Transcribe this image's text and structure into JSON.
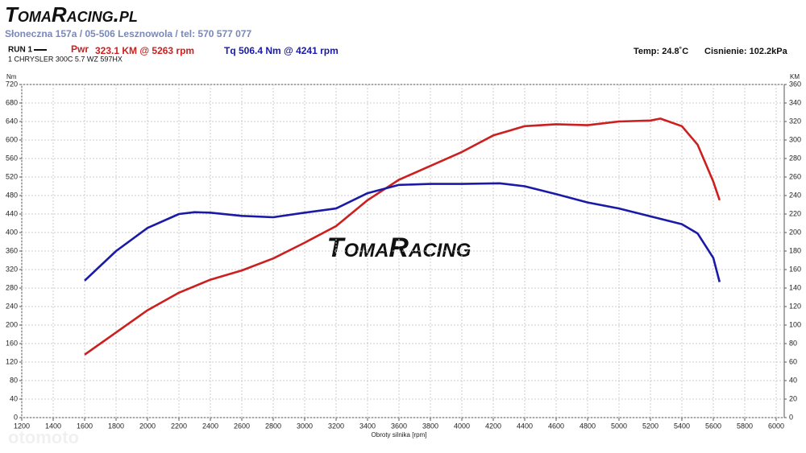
{
  "header": {
    "logo": "TomaRacing.pl",
    "address": "Słoneczna 157a / 05-506 Lesznowola / tel: 570 577 077",
    "run": "RUN 1",
    "vehicle": "1 CHRYSLER 300C 5.7 WZ 597HX",
    "temperature": "Temp: 24.8˚C",
    "pressure": "Cisnienie: 102.2kPa"
  },
  "chart_data": {
    "type": "line",
    "xlabel": "Obroty silnika [rpm]",
    "ylabel": "Nm",
    "y2label": "KM",
    "watermark": "TomaRacing",
    "site_watermark": "otomoto",
    "xlim": [
      1200,
      6000
    ],
    "xticks": [
      1200,
      1400,
      1600,
      1800,
      2000,
      2200,
      2400,
      2600,
      2800,
      3000,
      3200,
      3400,
      3600,
      3800,
      4000,
      4200,
      4400,
      4600,
      4800,
      5000,
      5200,
      5400,
      5600,
      5800,
      6000
    ],
    "ylim": [
      0,
      720
    ],
    "yticks": [
      0,
      40,
      80,
      120,
      160,
      200,
      240,
      280,
      320,
      360,
      400,
      440,
      480,
      520,
      560,
      600,
      640,
      680,
      720
    ],
    "y2lim": [
      0,
      360
    ],
    "y2ticks": [
      0,
      20,
      40,
      60,
      80,
      100,
      120,
      140,
      160,
      180,
      200,
      220,
      240,
      260,
      280,
      300,
      320,
      340,
      360
    ],
    "grid": true,
    "series": [
      {
        "name": "Pwr",
        "peak": "323.1 KM @ 5263 rpm",
        "color": "#cc1f1f",
        "axis": "y2",
        "x": [
          1600,
          1800,
          2000,
          2200,
          2400,
          2600,
          2800,
          3000,
          3200,
          3400,
          3600,
          3800,
          4000,
          4200,
          4400,
          4600,
          4800,
          5000,
          5200,
          5263,
          5400,
          5500,
          5600,
          5640
        ],
        "values": [
          68,
          92,
          116,
          135,
          149,
          159,
          172,
          189,
          207,
          235,
          257,
          272,
          287,
          305,
          315,
          317,
          316,
          320,
          321,
          323.1,
          315,
          295,
          255,
          235
        ]
      },
      {
        "name": "Tq",
        "peak": "506.4 Nm @ 4241 rpm",
        "color": "#1a1aa6",
        "x": [
          1600,
          1800,
          2000,
          2200,
          2300,
          2400,
          2600,
          2800,
          3000,
          3200,
          3400,
          3600,
          3800,
          4000,
          4241,
          4400,
          4600,
          4800,
          5000,
          5200,
          5400,
          5500,
          5600,
          5640
        ],
        "values": [
          296,
          360,
          410,
          440,
          444,
          443,
          436,
          433,
          443,
          452,
          485,
          503,
          505,
          505,
          506.4,
          500,
          483,
          465,
          452,
          435,
          418,
          398,
          345,
          293
        ]
      }
    ]
  }
}
